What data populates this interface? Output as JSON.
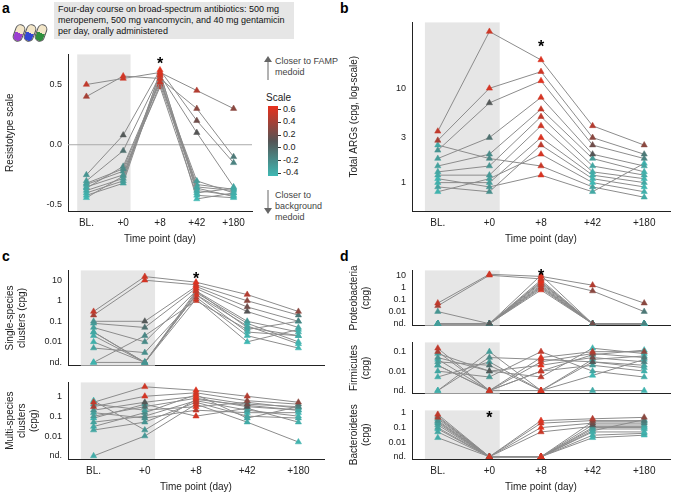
{
  "chart_data": [
    {
      "panel": "a",
      "type": "line",
      "ylabel": "Resistotype scale",
      "xlabel": "Time point (day)",
      "categories": [
        "BL.",
        "+0",
        "+8",
        "+42",
        "+180"
      ],
      "ylim": [
        -0.55,
        0.75
      ],
      "yticks": [
        -0.5,
        {
          "value": 0,
          "label": "0.0"
        },
        0.5
      ],
      "grid": false,
      "color": "#8c8c8c",
      "marker": "triangle",
      "note": "Four-day course on broad-spectrum antibiotics: 500 mg meropenem, 500 mg vancomycin, and 40 mg gentamicin per day, orally administered",
      "direction_labels": [
        "Closer to FAMP medoid",
        "Closer to background medoid"
      ],
      "hline": 0,
      "shaded": [
        "BL.",
        "+0"
      ],
      "annotations": [
        {
          "text": "*",
          "x": "+8",
          "y": 0.7
        }
      ],
      "colorbar": {
        "title": "Scale",
        "range": [
          -0.45,
          0.65
        ],
        "colors": [
          "#3fb8b3",
          "#555555",
          "#e8301c"
        ],
        "ticks": [
          0.6,
          0.4,
          0.2,
          {
            "value": 0,
            "label": "0.0"
          },
          -0.2,
          -0.4
        ]
      },
      "series": [
        {
          "values": [
            0.5,
            0.55,
            0.6,
            0.45,
            0.3
          ]
        },
        {
          "values": [
            0.4,
            0.57,
            0.55,
            0.3,
            -0.1
          ]
        },
        {
          "values": [
            -0.25,
            0.08,
            0.62,
            0.2,
            -0.15
          ]
        },
        {
          "values": [
            -0.3,
            -0.05,
            0.58,
            0.1,
            -0.35
          ]
        },
        {
          "values": [
            -0.32,
            -0.2,
            0.52,
            -0.3,
            -0.4
          ]
        },
        {
          "values": [
            -0.35,
            -0.25,
            0.5,
            -0.35,
            -0.38
          ]
        },
        {
          "values": [
            -0.38,
            -0.28,
            0.55,
            -0.38,
            -0.42
          ]
        },
        {
          "values": [
            -0.4,
            -0.3,
            0.6,
            -0.4,
            -0.36
          ]
        },
        {
          "values": [
            -0.33,
            -0.22,
            0.48,
            -0.42,
            -0.44
          ]
        },
        {
          "values": [
            -0.42,
            -0.32,
            0.57,
            -0.45,
            -0.4
          ]
        },
        {
          "values": [
            -0.36,
            -0.18,
            0.53,
            -0.33,
            -0.37
          ]
        },
        {
          "values": [
            -0.44,
            -0.26,
            0.59,
            -0.36,
            -0.43
          ]
        }
      ]
    },
    {
      "panel": "b",
      "type": "line",
      "ylabel": "Total ARGs (cpg, log-scale)",
      "xlabel": "Time point (day)",
      "categories": [
        "BL.",
        "+0",
        "+8",
        "+42",
        "+180"
      ],
      "log": "y",
      "ylim": [
        0.5,
        50
      ],
      "yticks": [
        1,
        3,
        10
      ],
      "grid": false,
      "color": "#8c8c8c",
      "marker": "triangle",
      "shaded": [
        "BL.",
        "+0"
      ],
      "annotations": [
        {
          "text": "*",
          "x": "+8",
          "y": 30
        }
      ],
      "series": [
        {
          "values": [
            3.5,
            40,
            20,
            4,
            2.5
          ]
        },
        {
          "values": [
            2.8,
            10,
            15,
            3,
            2
          ]
        },
        {
          "values": [
            2.2,
            7,
            12,
            2.5,
            1.8
          ]
        },
        {
          "values": [
            1.8,
            3,
            8,
            2,
            1.5
          ]
        },
        {
          "values": [
            1.5,
            2,
            6,
            1.8,
            1.3
          ]
        },
        {
          "values": [
            1.3,
            1.5,
            5,
            1.5,
            1.2
          ]
        },
        {
          "values": [
            1.2,
            1.2,
            4,
            1.3,
            1.1
          ]
        },
        {
          "values": [
            1.0,
            1.0,
            3,
            1.2,
            1.0
          ]
        },
        {
          "values": [
            0.9,
            0.8,
            2.5,
            1.1,
            0.9
          ]
        },
        {
          "values": [
            0.8,
            1.1,
            2,
            1.0,
            0.8
          ]
        },
        {
          "values": [
            2.5,
            1.8,
            1.5,
            0.9,
            0.7
          ]
        },
        {
          "values": [
            1.1,
            0.9,
            1.2,
            0.8,
            1.6
          ]
        }
      ]
    },
    {
      "panel": "c",
      "type": "line",
      "ylabel": "Single-species clusters (cpg)",
      "categories": [
        "BL.",
        "+0",
        "+8",
        "+42",
        "+180"
      ],
      "log": "y",
      "tick_labels": "y",
      "ylim": [
        0.0007,
        30
      ],
      "yticks": [
        {
          "value": 0.001,
          "label": "nd."
        },
        0.01,
        0.1,
        1,
        10
      ],
      "grid": false,
      "color": "#8c8c8c",
      "marker": "triangle",
      "shaded": [
        "BL.",
        "+0"
      ],
      "annotations": [
        {
          "text": "*",
          "x": "+8",
          "y": 16
        }
      ],
      "series": [
        {
          "values": [
            0.3,
            15,
            8,
            2,
            0.3
          ]
        },
        {
          "values": [
            0.2,
            10,
            6,
            1,
            0.2
          ]
        },
        {
          "values": [
            0.1,
            0.1,
            5,
            0.5,
            0.1
          ]
        },
        {
          "values": [
            0.08,
            0.05,
            4,
            0.3,
            0.05
          ]
        },
        {
          "values": [
            0.05,
            0.01,
            3,
            0.1,
            0.03
          ]
        },
        {
          "values": [
            0.03,
            0.001,
            3,
            0.05,
            0.02
          ]
        },
        {
          "values": [
            0.02,
            0.001,
            2.5,
            0.08,
            0.01
          ]
        },
        {
          "values": [
            0.01,
            0.001,
            2,
            0.03,
            0.02
          ]
        },
        {
          "values": [
            0.005,
            0.003,
            1.5,
            0.02,
            0.005
          ]
        },
        {
          "values": [
            0.001,
            0.001,
            1.2,
            0.01,
            0.04
          ]
        },
        {
          "values": [
            0.001,
            0.02,
            1,
            0.04,
            0.1
          ]
        },
        {
          "values": [
            0.03,
            0.001,
            2,
            0.06,
            0.008
          ]
        }
      ]
    },
    {
      "panel": "c",
      "type": "line",
      "ylabel": "Multi-species clusters (cpg)",
      "xlabel": "Time point (day)",
      "categories": [
        "BL.",
        "+0",
        "+8",
        "+42",
        "+180"
      ],
      "log": "y",
      "ylim": [
        0.0007,
        5
      ],
      "yticks": [
        {
          "value": 0.001,
          "label": "nd."
        },
        0.01,
        0.1,
        1
      ],
      "grid": false,
      "color": "#8c8c8c",
      "marker": "triangle",
      "shaded": [
        "BL.",
        "+0"
      ],
      "series": [
        {
          "values": [
            0.5,
            3,
            2,
            1,
            0.5
          ]
        },
        {
          "values": [
            0.3,
            1,
            1.5,
            0.6,
            0.4
          ]
        },
        {
          "values": [
            0.2,
            0.5,
            1,
            0.4,
            0.3
          ]
        },
        {
          "values": [
            0.1,
            0.3,
            0.8,
            0.3,
            0.2
          ]
        },
        {
          "values": [
            0.05,
            0.1,
            0.6,
            0.2,
            0.1
          ]
        },
        {
          "values": [
            0.02,
            0.05,
            0.5,
            0.1,
            0.08
          ]
        },
        {
          "values": [
            0.001,
            0.01,
            0.4,
            0.05,
            0.005
          ]
        },
        {
          "values": [
            0.4,
            0.2,
            0.3,
            0.5,
            0.25
          ]
        },
        {
          "values": [
            0.15,
            0.08,
            0.2,
            0.15,
            0.15
          ]
        },
        {
          "values": [
            0.08,
            0.4,
            0.1,
            0.25,
            0.05
          ]
        },
        {
          "values": [
            0.03,
            0.15,
            1.2,
            0.08,
            0.3
          ]
        },
        {
          "values": [
            0.6,
            0.02,
            0.7,
            0.35,
            0.2
          ]
        }
      ]
    },
    {
      "panel": "d",
      "type": "line",
      "ylabel": "Proteobacteria (cpg)",
      "categories": [
        "BL.",
        "+0",
        "+8",
        "+42",
        "+180"
      ],
      "log": "y",
      "tick_labels": "y",
      "ylim": [
        0.0007,
        25
      ],
      "yticks": [
        {
          "value": 0.001,
          "label": "nd."
        },
        0.01,
        0.1,
        1,
        10
      ],
      "grid": false,
      "color": "#8c8c8c",
      "marker": "triangle",
      "shaded": [
        "BL.",
        "+0"
      ],
      "annotations": [
        {
          "text": "*",
          "x": "+8",
          "y": 16
        }
      ],
      "series": [
        {
          "values": [
            0.05,
            12,
            8,
            1.5,
            0.05
          ]
        },
        {
          "values": [
            0.03,
            10,
            5,
            0.5,
            0.01
          ]
        },
        {
          "values": [
            0.01,
            0.001,
            3,
            0.001,
            0.001
          ]
        },
        {
          "values": [
            0.001,
            0.001,
            2,
            0.001,
            0.001
          ]
        },
        {
          "values": [
            0.001,
            0.001,
            1.5,
            0.001,
            0.001
          ]
        },
        {
          "values": [
            0.001,
            0.001,
            1,
            0.001,
            0.001
          ]
        },
        {
          "values": [
            0.001,
            0.001,
            0.8,
            0.001,
            0.001
          ]
        },
        {
          "values": [
            0.001,
            0.001,
            0.6,
            0.001,
            0.001
          ]
        },
        {
          "values": [
            0.001,
            0.001,
            10,
            0.001,
            0.001
          ]
        },
        {
          "values": [
            0.001,
            0.001,
            4,
            0.001,
            0.001
          ]
        },
        {
          "values": [
            0.001,
            0.001,
            2.5,
            0.001,
            0.001
          ]
        },
        {
          "values": [
            0.001,
            0.001,
            1.2,
            0.001,
            0.001
          ]
        }
      ]
    },
    {
      "panel": "d",
      "type": "line",
      "ylabel": "Firmicutes (cpg)",
      "categories": [
        "BL.",
        "+0",
        "+8",
        "+42",
        "+180"
      ],
      "log": "y",
      "tick_labels": "y",
      "ylim": [
        0.0007,
        0.3
      ],
      "yticks": [
        {
          "value": 0.001,
          "label": "nd."
        },
        0.01,
        0.1
      ],
      "grid": false,
      "color": "#8c8c8c",
      "marker": "triangle",
      "shaded": [
        "BL.",
        "+0"
      ],
      "series": [
        {
          "values": [
            0.15,
            0.001,
            0.05,
            0.1,
            0.1
          ]
        },
        {
          "values": [
            0.1,
            0.001,
            0.03,
            0.08,
            0.05
          ]
        },
        {
          "values": [
            0.05,
            0.01,
            0.02,
            0.05,
            0.03
          ]
        },
        {
          "values": [
            0.03,
            0.02,
            0.001,
            0.03,
            0.02
          ]
        },
        {
          "values": [
            0.02,
            0.001,
            0.01,
            0.02,
            0.01
          ]
        },
        {
          "values": [
            0.01,
            0.005,
            0.1,
            0.01,
            0.005
          ]
        },
        {
          "values": [
            0.005,
            0.03,
            0.001,
            0.001,
            0.001
          ]
        },
        {
          "values": [
            0.001,
            0.1,
            0.001,
            0.04,
            0.06
          ]
        },
        {
          "values": [
            0.08,
            0.01,
            0.005,
            0.15,
            0.08
          ]
        },
        {
          "values": [
            0.04,
            0.001,
            0.001,
            0.006,
            0.04
          ]
        },
        {
          "values": [
            0.001,
            0.05,
            0.04,
            0.03,
            0.015
          ]
        },
        {
          "values": [
            0.02,
            0.001,
            0.01,
            0.07,
            0.12
          ]
        }
      ]
    },
    {
      "panel": "d",
      "type": "line",
      "ylabel": "Bacteroidetes (cpg)",
      "xlabel": "Time point (day)",
      "categories": [
        "BL.",
        "+0",
        "+8",
        "+42",
        "+180"
      ],
      "log": "y",
      "ylim": [
        0.0007,
        1.5
      ],
      "yticks": [
        {
          "value": 0.001,
          "label": "nd."
        },
        0.01,
        0.1,
        1
      ],
      "grid": false,
      "color": "#8c8c8c",
      "marker": "triangle",
      "shaded": [
        "BL.",
        "+0"
      ],
      "annotations": [
        {
          "text": "*",
          "x": "+0",
          "y": 0.8
        }
      ],
      "series": [
        {
          "values": [
            0.8,
            0.001,
            0.3,
            0.4,
            0.5
          ]
        },
        {
          "values": [
            0.5,
            0.001,
            0.2,
            0.3,
            0.3
          ]
        },
        {
          "values": [
            0.3,
            0.001,
            0.1,
            0.2,
            0.2
          ]
        },
        {
          "values": [
            0.2,
            0.001,
            0.001,
            0.15,
            0.15
          ]
        },
        {
          "values": [
            0.1,
            0.001,
            0.001,
            0.1,
            0.1
          ]
        },
        {
          "values": [
            0.05,
            0.001,
            0.001,
            0.08,
            0.08
          ]
        },
        {
          "values": [
            0.02,
            0.001,
            0.001,
            0.05,
            0.05
          ]
        },
        {
          "values": [
            0.4,
            0.001,
            0.001,
            0.03,
            0.04
          ]
        },
        {
          "values": [
            0.15,
            0.001,
            0.001,
            0.02,
            0.03
          ]
        },
        {
          "values": [
            0.08,
            0.001,
            0.001,
            0.25,
            0.25
          ]
        },
        {
          "values": [
            0.25,
            0.001,
            0.05,
            0.12,
            0.12
          ]
        },
        {
          "values": [
            0.6,
            0.001,
            0.001,
            0.06,
            0.35
          ]
        }
      ]
    }
  ]
}
